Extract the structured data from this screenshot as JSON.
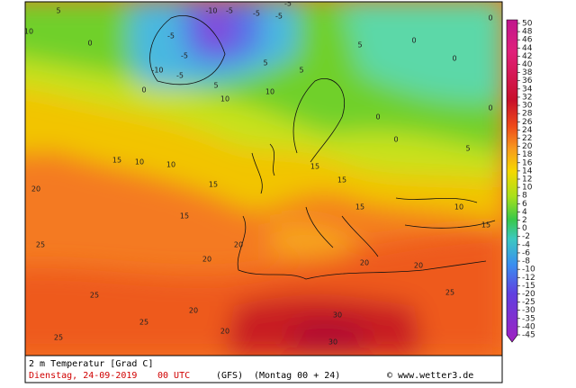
{
  "title": "2 m Temperatur [Grad C]",
  "date": "Dienstag, 24-09-2019",
  "time": "00 UTC",
  "model": "(GFS)",
  "run": "(Montag 00 + 24)",
  "credit": "© www.wetter3.de",
  "colorbar_labels": [
    50,
    48,
    46,
    44,
    42,
    40,
    38,
    36,
    34,
    32,
    30,
    28,
    26,
    24,
    22,
    20,
    18,
    16,
    14,
    12,
    10,
    8,
    6,
    4,
    2,
    0,
    -2,
    -4,
    -6,
    -8,
    -10,
    -12,
    -15,
    -20,
    -25,
    -30,
    -35,
    -40,
    -45
  ],
  "map_labels": [
    5,
    10,
    0,
    -5,
    -10,
    -5,
    -5,
    -5,
    -5,
    -10,
    -5,
    -5,
    0,
    5,
    10,
    10,
    5,
    5,
    5,
    0,
    0,
    0,
    0,
    0,
    0,
    5,
    10,
    10,
    15,
    20,
    15,
    15,
    15,
    15,
    15,
    10,
    15,
    25,
    20,
    20,
    20,
    20,
    25,
    25,
    25,
    25,
    20,
    30,
    30,
    20
  ]
}
